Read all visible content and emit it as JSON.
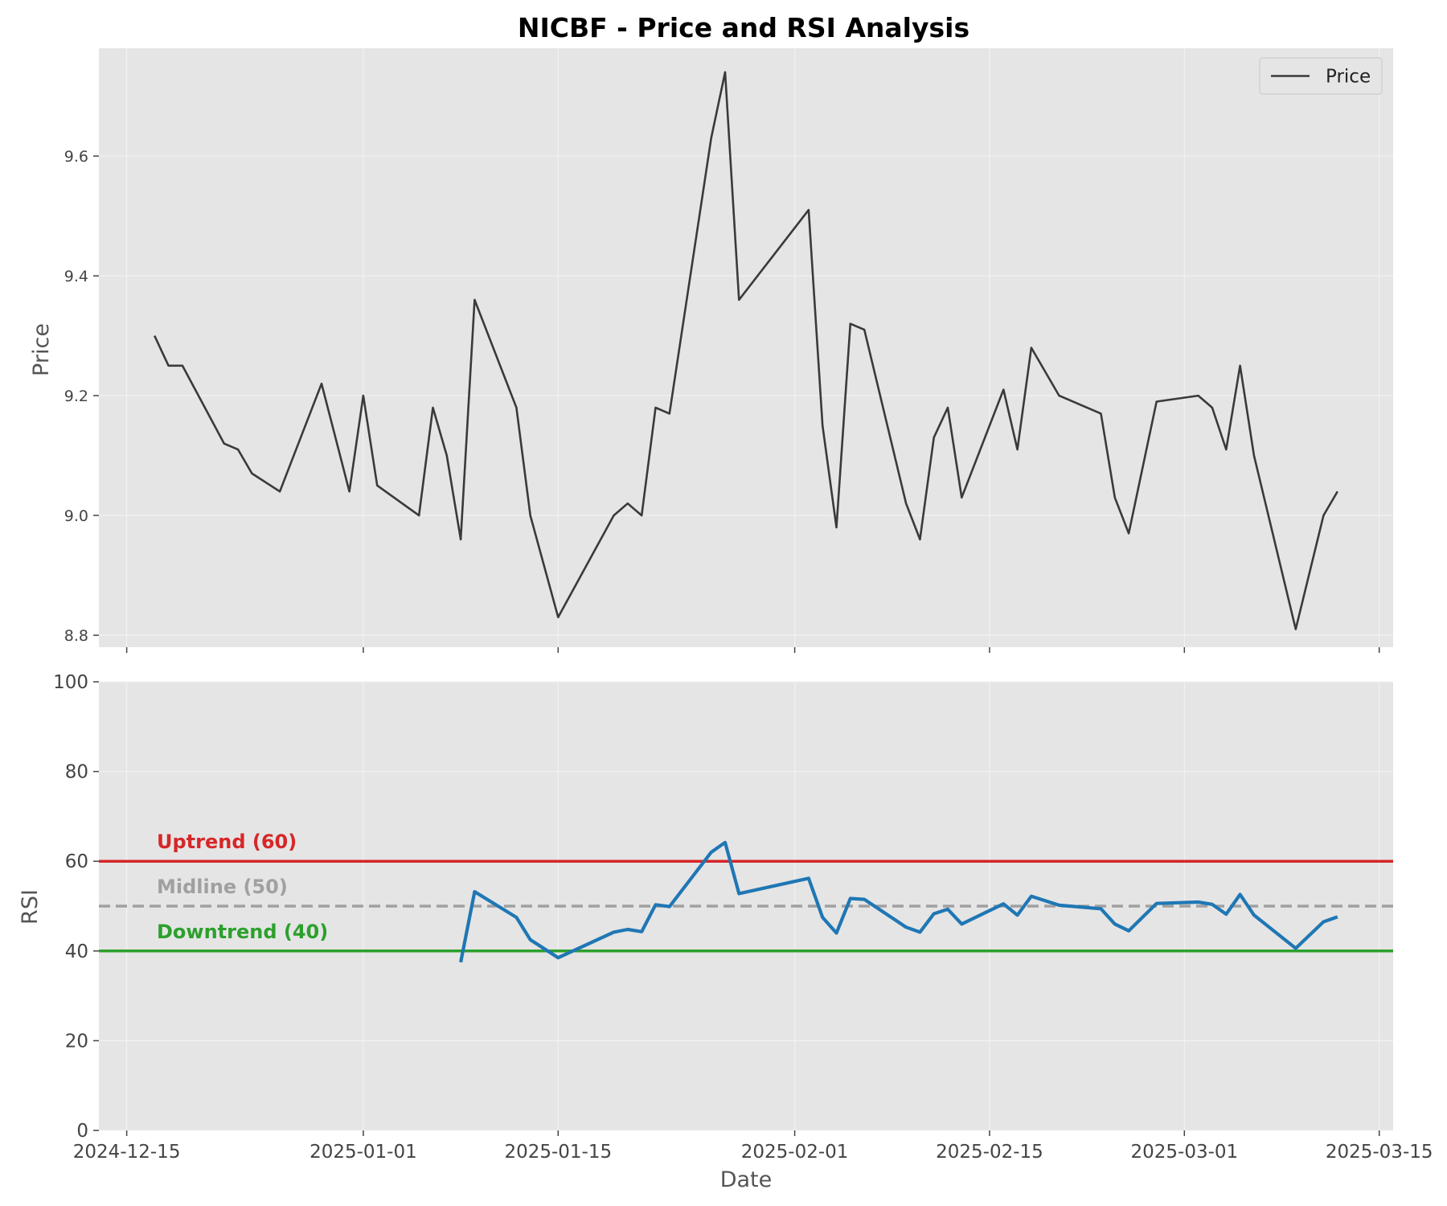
{
  "chart_data": {
    "title": "NICBF - Price and RSI Analysis",
    "x_label": "Date",
    "x_ticks": [
      "2024-12-15",
      "2025-01-01",
      "2025-01-15",
      "2025-02-01",
      "2025-02-15",
      "2025-03-01",
      "2025-03-15"
    ],
    "x_range": [
      "2024-12-13",
      "2025-03-16"
    ],
    "colors": {
      "background": "#e5e5e5",
      "grid": "#f2f2f2",
      "price": "#3a3a3a",
      "rsi": "#1f77b4",
      "uptrend": "#d62728",
      "midline": "#a0a0a0",
      "downtrend": "#2ca02c"
    },
    "panels": [
      {
        "type": "line",
        "name": "price-panel",
        "ylabel": "Price",
        "ylim": [
          8.78,
          9.78
        ],
        "y_ticks": [
          8.8,
          9.0,
          9.2,
          9.4,
          9.6
        ],
        "legend": {
          "position": "top-right",
          "entries": [
            "Price"
          ]
        },
        "grid": true,
        "series": [
          {
            "name": "Price",
            "points": [
              [
                "2024-12-17",
                9.3
              ],
              [
                "2024-12-18",
                9.25
              ],
              [
                "2024-12-19",
                9.25
              ],
              [
                "2024-12-22",
                9.12
              ],
              [
                "2024-12-23",
                9.11
              ],
              [
                "2024-12-24",
                9.07
              ],
              [
                "2024-12-26",
                9.04
              ],
              [
                "2024-12-29",
                9.22
              ],
              [
                "2024-12-31",
                9.04
              ],
              [
                "2025-01-01",
                9.2
              ],
              [
                "2025-01-02",
                9.05
              ],
              [
                "2025-01-05",
                9.0
              ],
              [
                "2025-01-06",
                9.18
              ],
              [
                "2025-01-07",
                9.1
              ],
              [
                "2025-01-08",
                8.96
              ],
              [
                "2025-01-09",
                9.36
              ],
              [
                "2025-01-12",
                9.18
              ],
              [
                "2025-01-13",
                9.0
              ],
              [
                "2025-01-15",
                8.83
              ],
              [
                "2025-01-19",
                9.0
              ],
              [
                "2025-01-20",
                9.02
              ],
              [
                "2025-01-21",
                9.0
              ],
              [
                "2025-01-22",
                9.18
              ],
              [
                "2025-01-23",
                9.17
              ],
              [
                "2025-01-26",
                9.63
              ],
              [
                "2025-01-27",
                9.74
              ],
              [
                "2025-01-28",
                9.36
              ],
              [
                "2025-02-02",
                9.51
              ],
              [
                "2025-02-03",
                9.15
              ],
              [
                "2025-02-04",
                8.98
              ],
              [
                "2025-02-05",
                9.32
              ],
              [
                "2025-02-06",
                9.31
              ],
              [
                "2025-02-09",
                9.02
              ],
              [
                "2025-02-10",
                8.96
              ],
              [
                "2025-02-11",
                9.13
              ],
              [
                "2025-02-12",
                9.18
              ],
              [
                "2025-02-13",
                9.03
              ],
              [
                "2025-02-16",
                9.21
              ],
              [
                "2025-02-17",
                9.11
              ],
              [
                "2025-02-18",
                9.28
              ],
              [
                "2025-02-20",
                9.2
              ],
              [
                "2025-02-23",
                9.17
              ],
              [
                "2025-02-24",
                9.03
              ],
              [
                "2025-02-25",
                8.97
              ],
              [
                "2025-02-27",
                9.19
              ],
              [
                "2025-03-02",
                9.2
              ],
              [
                "2025-03-03",
                9.18
              ],
              [
                "2025-03-04",
                9.11
              ],
              [
                "2025-03-05",
                9.25
              ],
              [
                "2025-03-06",
                9.1
              ],
              [
                "2025-03-09",
                8.81
              ],
              [
                "2025-03-11",
                9.0
              ],
              [
                "2025-03-12",
                9.04
              ]
            ]
          }
        ]
      },
      {
        "type": "line",
        "name": "rsi-panel",
        "ylabel": "RSI",
        "ylim": [
          0,
          100
        ],
        "y_ticks": [
          0,
          20,
          40,
          60,
          80,
          100
        ],
        "grid": true,
        "reference_lines": [
          {
            "name": "uptrend",
            "value": 60,
            "label": "Uptrend (60)",
            "style": "solid"
          },
          {
            "name": "midline",
            "value": 50,
            "label": "Midline (50)",
            "style": "dashed"
          },
          {
            "name": "downtrend",
            "value": 40,
            "label": "Downtrend (40)",
            "style": "solid"
          }
        ],
        "series": [
          {
            "name": "RSI",
            "points": [
              [
                "2025-01-08",
                37.5
              ],
              [
                "2025-01-09",
                53.2
              ],
              [
                "2025-01-12",
                47.5
              ],
              [
                "2025-01-13",
                42.5
              ],
              [
                "2025-01-15",
                38.5
              ],
              [
                "2025-01-19",
                44.2
              ],
              [
                "2025-01-20",
                44.8
              ],
              [
                "2025-01-21",
                44.3
              ],
              [
                "2025-01-22",
                50.3
              ],
              [
                "2025-01-23",
                49.9
              ],
              [
                "2025-01-26",
                62.0
              ],
              [
                "2025-01-27",
                64.2
              ],
              [
                "2025-01-28",
                52.8
              ],
              [
                "2025-02-02",
                56.2
              ],
              [
                "2025-02-03",
                47.5
              ],
              [
                "2025-02-04",
                44.0
              ],
              [
                "2025-02-05",
                51.7
              ],
              [
                "2025-02-06",
                51.5
              ],
              [
                "2025-02-09",
                45.3
              ],
              [
                "2025-02-10",
                44.2
              ],
              [
                "2025-02-11",
                48.3
              ],
              [
                "2025-02-12",
                49.3
              ],
              [
                "2025-02-13",
                46.0
              ],
              [
                "2025-02-16",
                50.5
              ],
              [
                "2025-02-17",
                48.0
              ],
              [
                "2025-02-18",
                52.2
              ],
              [
                "2025-02-20",
                50.2
              ],
              [
                "2025-02-23",
                49.4
              ],
              [
                "2025-02-24",
                46.0
              ],
              [
                "2025-02-25",
                44.5
              ],
              [
                "2025-02-27",
                50.6
              ],
              [
                "2025-03-02",
                50.9
              ],
              [
                "2025-03-03",
                50.4
              ],
              [
                "2025-03-04",
                48.2
              ],
              [
                "2025-03-05",
                52.6
              ],
              [
                "2025-03-06",
                48.0
              ],
              [
                "2025-03-09",
                40.6
              ],
              [
                "2025-03-11",
                46.5
              ],
              [
                "2025-03-12",
                47.6
              ]
            ]
          }
        ]
      }
    ]
  }
}
